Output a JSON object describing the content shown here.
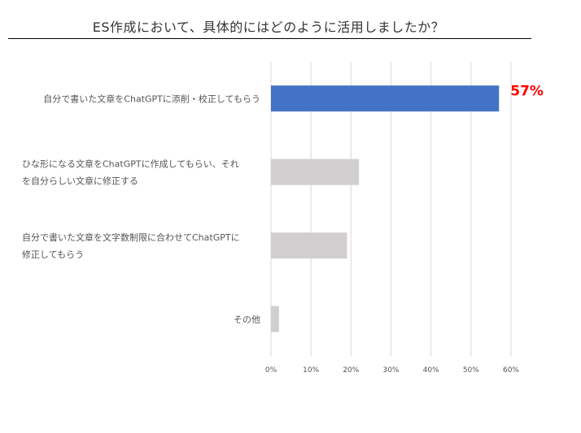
{
  "chart_data": {
    "type": "bar",
    "orientation": "horizontal",
    "title": "ES作成において、具体的にはどのように活用しましたか？",
    "categories": [
      [
        "自分で書いた文章をChatGPTに添削・校正してもらう"
      ],
      [
        "ひな形になる文章をChatGPTに作成してもらい、それ",
        "を自分らしい文章に修正する"
      ],
      [
        "自分で書いた文章を文字数制限に合わせてChatGPTに",
        "修正してもらう"
      ],
      [
        "その他"
      ]
    ],
    "values": [
      57,
      22,
      19,
      2
    ],
    "xlim": [
      0,
      60
    ],
    "xticks": [
      0,
      10,
      20,
      30,
      40,
      50,
      60
    ],
    "tick_suffix": "%",
    "grid": true,
    "data_labels": [
      {
        "index": 0,
        "text": "57%"
      }
    ],
    "colors": {
      "highlight": "#4472c4",
      "default": "#d0cece",
      "label": "#ff0000",
      "grid": "#d9d9d9"
    }
  }
}
